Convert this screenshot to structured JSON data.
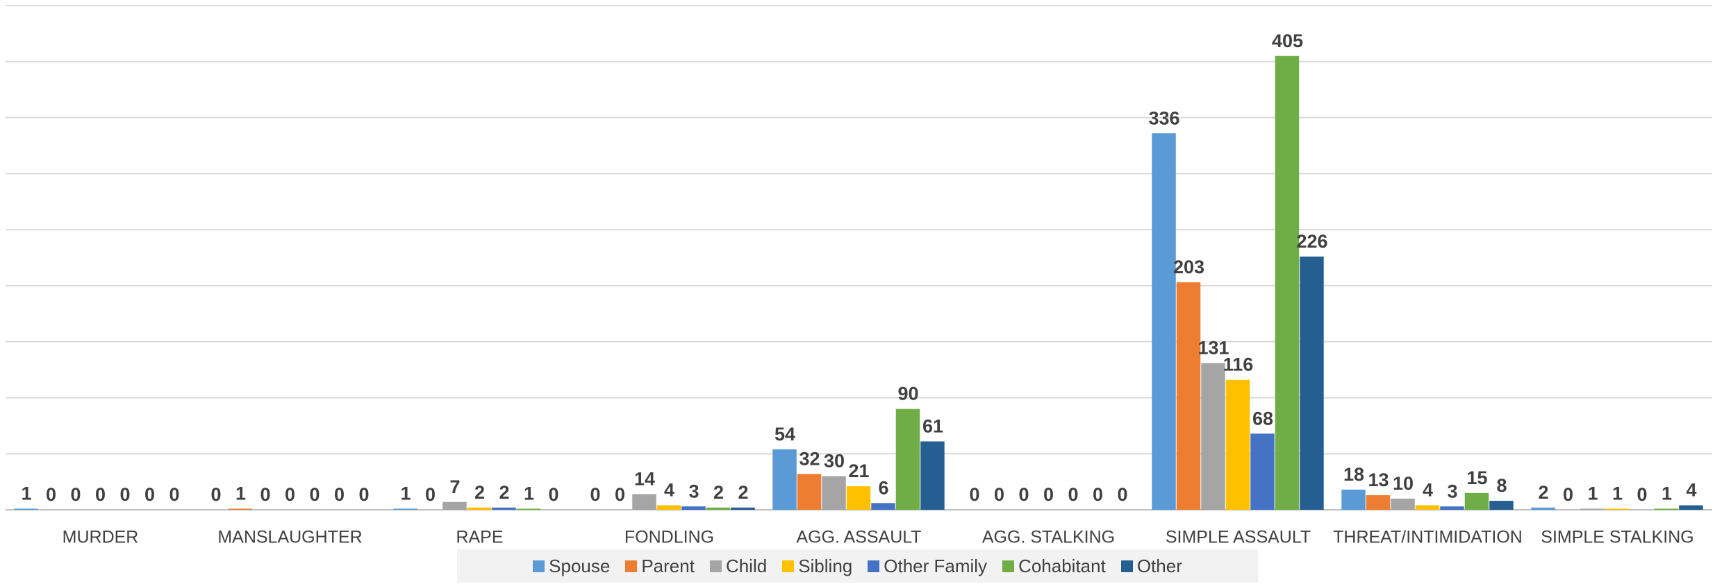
{
  "chart_data": {
    "type": "bar",
    "categories": [
      "MURDER",
      "MANSLAUGHTER",
      "RAPE",
      "FONDLING",
      "AGG.  ASSAULT",
      "AGG. STALKING",
      "SIMPLE ASSAULT",
      "THREAT/INTIMIDATION",
      "SIMPLE STALKING"
    ],
    "series": [
      {
        "name": "Spouse",
        "color": "#5b9bd5",
        "values": [
          1,
          0,
          1,
          0,
          54,
          0,
          336,
          18,
          2
        ]
      },
      {
        "name": "Parent",
        "color": "#ed7d31",
        "values": [
          0,
          1,
          0,
          0,
          32,
          0,
          203,
          13,
          0
        ]
      },
      {
        "name": "Child",
        "color": "#a5a5a5",
        "values": [
          0,
          0,
          7,
          14,
          30,
          0,
          131,
          10,
          1
        ]
      },
      {
        "name": "Sibling",
        "color": "#ffc000",
        "values": [
          0,
          0,
          2,
          4,
          21,
          0,
          116,
          4,
          1
        ]
      },
      {
        "name": "Other Family",
        "color": "#4472c4",
        "values": [
          0,
          0,
          2,
          3,
          6,
          0,
          68,
          3,
          0
        ]
      },
      {
        "name": "Cohabitant",
        "color": "#70ad47",
        "values": [
          0,
          0,
          1,
          2,
          90,
          0,
          405,
          15,
          1
        ]
      },
      {
        "name": "Other",
        "color": "#255e91",
        "values": [
          0,
          0,
          0,
          2,
          61,
          0,
          226,
          8,
          4
        ]
      }
    ],
    "ylim": [
      0,
      450
    ],
    "yticks": [
      0,
      50,
      100,
      150,
      200,
      250,
      300,
      350,
      400,
      450
    ],
    "grid": true,
    "legend": "bottom"
  }
}
